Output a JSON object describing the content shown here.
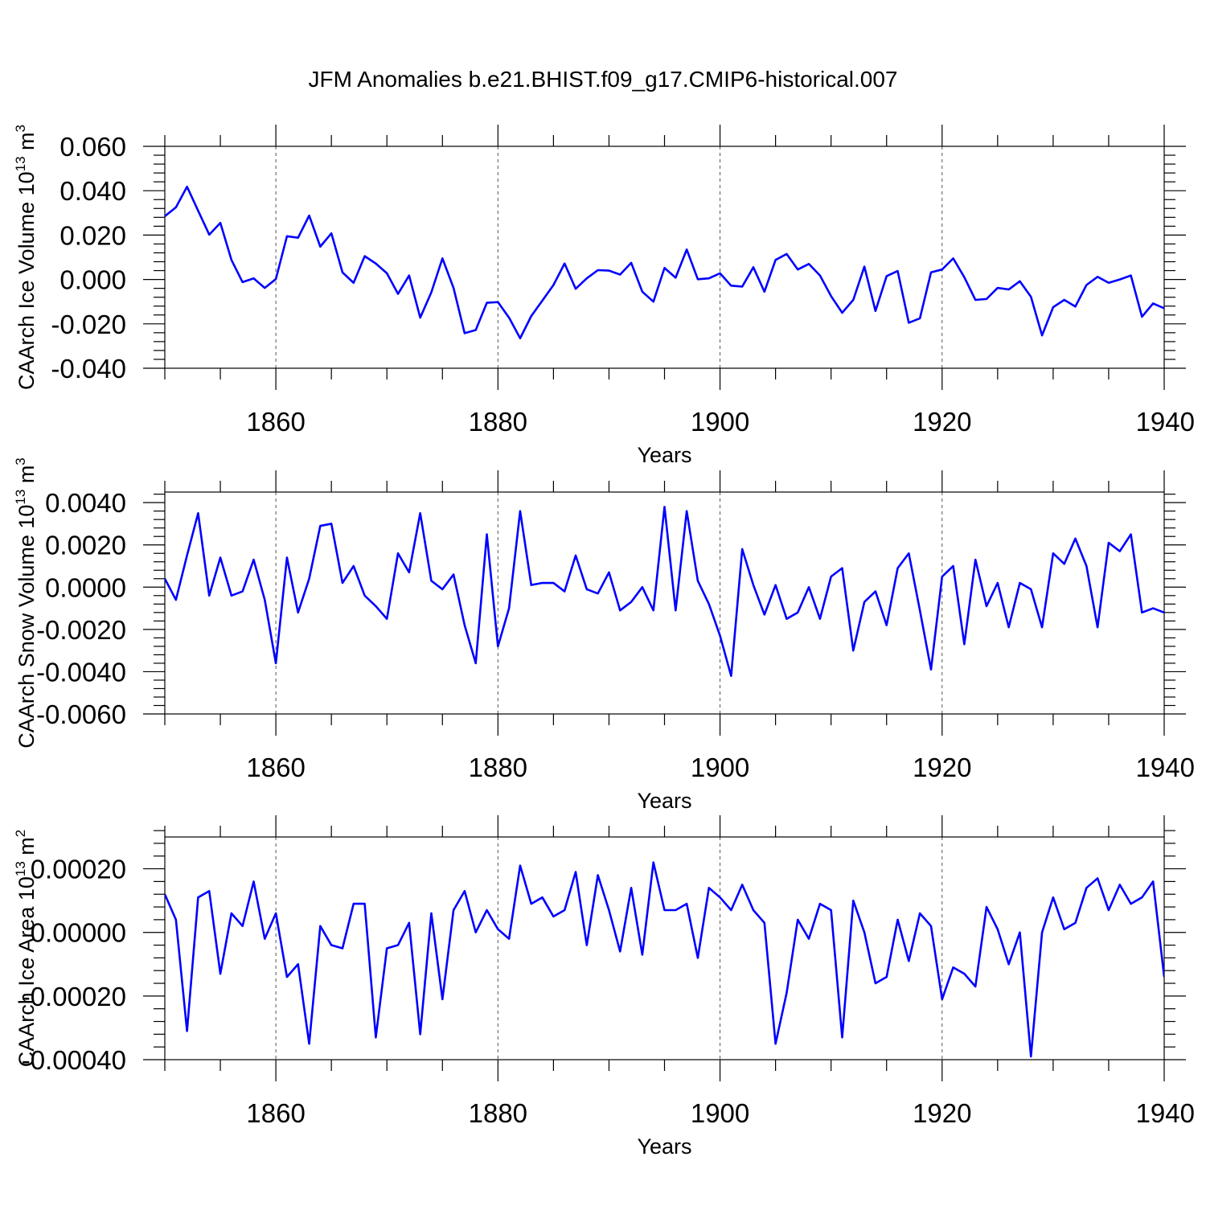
{
  "title": "JFM Anomalies b.e21.BHIST.f09_g17.CMIP6-historical.007",
  "colors": {
    "line": "#0000ff",
    "axis": "#000000",
    "grid": "#555555"
  },
  "chart_data": [
    {
      "type": "line",
      "xlabel": "Years",
      "ylabel": {
        "main": "CAArch Ice Volume 10",
        "exponent": "13",
        "unit": " m",
        "unit_exponent": "3"
      },
      "xlim": [
        1850,
        1940
      ],
      "ylim": [
        -0.04,
        0.06
      ],
      "x_ticks": [
        1860,
        1880,
        1900,
        1920,
        1940
      ],
      "x_tick_labels": [
        "1860",
        "1880",
        "1900",
        "1920",
        "1940"
      ],
      "y_ticks": [
        -0.04,
        -0.02,
        0.0,
        0.02,
        0.04,
        0.06
      ],
      "y_tick_labels": [
        "-0.040",
        "-0.020",
        "0.000",
        "0.020",
        "0.040",
        "0.060"
      ],
      "grid": "dashed vertical at major x ticks",
      "x_start": 1850,
      "series": [
        {
          "values": [
            0.0285,
            0.0325,
            0.0418,
            0.031,
            0.0202,
            0.0255,
            0.0088,
            -0.0012,
            0.0005,
            -0.0038,
            0.0002,
            0.0195,
            0.0188,
            0.0288,
            0.0148,
            0.0208,
            0.0032,
            -0.0015,
            0.0105,
            0.0072,
            0.0028,
            -0.0065,
            0.0018,
            -0.0172,
            -0.0058,
            0.0095,
            -0.0038,
            -0.0242,
            -0.0228,
            -0.0105,
            -0.0102,
            -0.0172,
            -0.0265,
            -0.0165,
            -0.0095,
            -0.0025,
            0.0072,
            -0.0042,
            0.0005,
            0.0042,
            0.004,
            0.0022,
            0.0075,
            -0.0055,
            -0.01,
            0.0052,
            0.0008,
            0.0135,
            0.0001,
            0.0005,
            0.0028,
            -0.0028,
            -0.0032,
            0.0055,
            -0.0055,
            0.0088,
            0.0115,
            0.0045,
            0.007,
            0.0018,
            -0.0075,
            -0.015,
            -0.0092,
            0.0058,
            -0.0142,
            0.0015,
            0.0038,
            -0.0195,
            -0.0175,
            0.0032,
            0.0045,
            0.0095,
            0.001,
            -0.0092,
            -0.0088,
            -0.0038,
            -0.0045,
            -0.0008,
            -0.0078,
            -0.0252,
            -0.0125,
            -0.0092,
            -0.0122,
            -0.0025,
            0.0012,
            -0.0015,
            0.0,
            0.0018,
            -0.0168,
            -0.0108,
            -0.013
          ]
        }
      ]
    },
    {
      "type": "line",
      "xlabel": "Years",
      "ylabel": {
        "main": "CAArch Snow Volume 10",
        "exponent": "13",
        "unit": " m",
        "unit_exponent": "3"
      },
      "xlim": [
        1850,
        1940
      ],
      "ylim": [
        -0.006,
        0.0045
      ],
      "x_ticks": [
        1860,
        1880,
        1900,
        1920,
        1940
      ],
      "x_tick_labels": [
        "1860",
        "1880",
        "1900",
        "1920",
        "1940"
      ],
      "y_ticks": [
        -0.006,
        -0.004,
        -0.002,
        0.0,
        0.002,
        0.004
      ],
      "y_tick_labels": [
        "-0.0060",
        "-0.0040",
        "-0.0020",
        "0.0000",
        "0.0020",
        "0.0040"
      ],
      "grid": "dashed vertical at major x ticks",
      "x_start": 1850,
      "series": [
        {
          "values": [
            0.0004,
            -0.0006,
            0.0015,
            0.0035,
            -0.0004,
            0.0014,
            -0.0004,
            -0.0002,
            0.0013,
            -0.0006,
            -0.0036,
            0.0014,
            -0.0012,
            0.0004,
            0.0029,
            0.003,
            0.0002,
            0.001,
            -0.0004,
            -0.0009,
            -0.0015,
            0.0016,
            0.0007,
            0.0035,
            0.0003,
            -0.0001,
            0.0006,
            -0.0018,
            -0.0036,
            0.0025,
            -0.0028,
            -0.001,
            0.0036,
            0.0001,
            0.0002,
            0.0002,
            -0.0002,
            0.0015,
            -0.0001,
            -0.0003,
            0.0007,
            -0.0011,
            -0.0007,
            0.0,
            -0.0011,
            0.0038,
            -0.0011,
            0.0036,
            0.0003,
            -0.0008,
            -0.0023,
            -0.0042,
            0.0018,
            0.0001,
            -0.0013,
            0.0001,
            -0.0015,
            -0.0012,
            0.0,
            -0.0015,
            0.0005,
            0.0009,
            -0.003,
            -0.0007,
            -0.0002,
            -0.0018,
            0.0009,
            0.0016,
            -0.0011,
            -0.0039,
            0.0005,
            0.001,
            -0.0027,
            0.0013,
            -0.0009,
            0.0002,
            -0.0019,
            0.0002,
            -0.0001,
            -0.0019,
            0.0016,
            0.0011,
            0.0023,
            0.001,
            -0.0019,
            0.0021,
            0.0017,
            0.0025,
            -0.0012,
            -0.001,
            -0.0012
          ]
        }
      ]
    },
    {
      "type": "line",
      "xlabel": "Years",
      "ylabel": {
        "main": "CAArch Ice Area 10",
        "exponent": "13",
        "unit": " m",
        "unit_exponent": "2"
      },
      "xlim": [
        1850,
        1940
      ],
      "ylim": [
        -0.0004,
        0.0003
      ],
      "x_ticks": [
        1860,
        1880,
        1900,
        1920,
        1940
      ],
      "x_tick_labels": [
        "1860",
        "1880",
        "1900",
        "1920",
        "1940"
      ],
      "y_ticks": [
        -0.0004,
        -0.0002,
        0.0,
        0.0002
      ],
      "y_tick_labels": [
        "-0.00040",
        "-0.00020",
        "0.00000",
        "0.00020"
      ],
      "grid": "dashed vertical at major x ticks",
      "x_start": 1850,
      "series": [
        {
          "values": [
            0.00012,
            4e-05,
            -0.00031,
            0.00011,
            0.00013,
            -0.00013,
            6e-05,
            2e-05,
            0.00016,
            -2e-05,
            6e-05,
            -0.00014,
            -0.0001,
            -0.00035,
            2e-05,
            -4e-05,
            -5e-05,
            9e-05,
            9e-05,
            -0.00033,
            -5e-05,
            -4e-05,
            3e-05,
            -0.00032,
            6e-05,
            -0.00021,
            7e-05,
            0.00013,
            0.0,
            7e-05,
            1e-05,
            -2e-05,
            0.00021,
            9e-05,
            0.00011,
            5e-05,
            7e-05,
            0.00019,
            -4e-05,
            0.00018,
            7e-05,
            -6e-05,
            0.00014,
            -7e-05,
            0.00022,
            7e-05,
            7e-05,
            9e-05,
            -8e-05,
            0.00014,
            0.00011,
            7e-05,
            0.00015,
            7e-05,
            3e-05,
            -0.00035,
            -0.00019,
            4e-05,
            -2e-05,
            9e-05,
            7e-05,
            -0.00033,
            0.0001,
            0.0,
            -0.00016,
            -0.00014,
            4e-05,
            -9e-05,
            6e-05,
            2e-05,
            -0.00021,
            -0.00011,
            -0.00013,
            -0.00017,
            8e-05,
            1e-05,
            -0.0001,
            0.0,
            -0.00039,
            0.0,
            0.00011,
            1e-05,
            3e-05,
            0.00014,
            0.00017,
            7e-05,
            0.00015,
            9e-05,
            0.00011,
            0.00016,
            -0.00014
          ]
        }
      ]
    }
  ]
}
